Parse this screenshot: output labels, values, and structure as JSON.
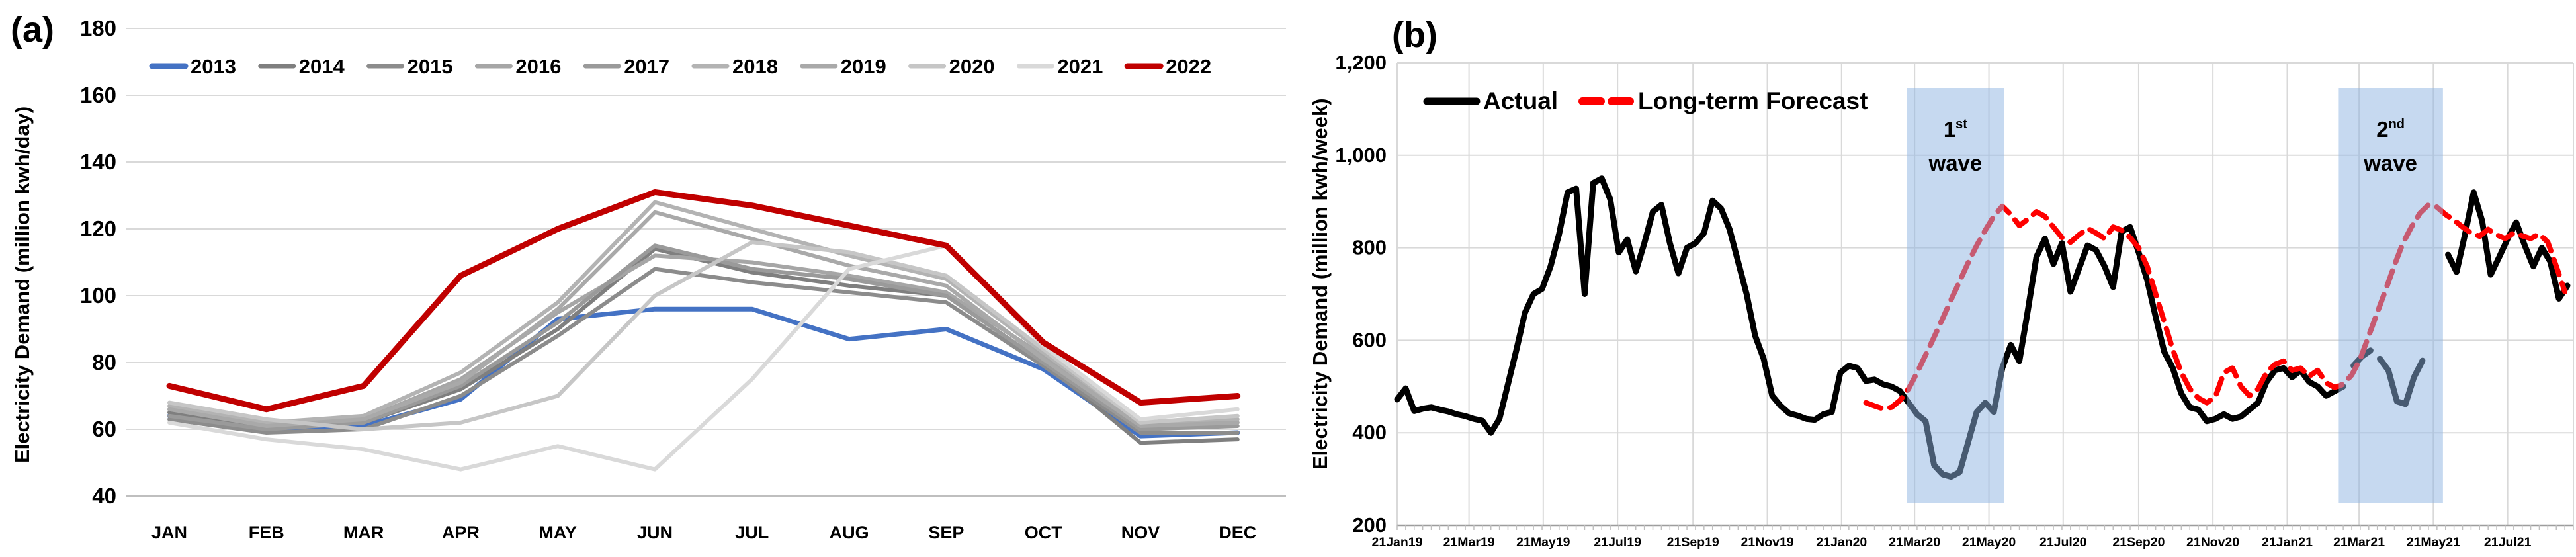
{
  "figure": {
    "panel_a_title": "(a)",
    "panel_b_title": "(b)",
    "panel_a_ylabel": "Electricity Demand (million kwh/day)",
    "panel_b_ylabel": "Electricity Demand (million kwh/week)"
  },
  "colors": {
    "grid": "#D9D9D9",
    "axis": "#BFBFBF",
    "band_fill": "#8DB3E2",
    "text": "#000000",
    "actual": "#000000",
    "forecast": "#FE0000",
    "blue_2013": "#4472C4",
    "red_2022": "#C00000"
  },
  "chart_data": [
    {
      "type": "line",
      "panel": "a",
      "title": "(a)",
      "ylabel": "Electricity Demand (million kwh/day)",
      "xlabel": "",
      "categories": [
        "JAN",
        "FEB",
        "MAR",
        "APR",
        "MAY",
        "JUN",
        "JUL",
        "AUG",
        "SEP",
        "OCT",
        "NOV",
        "DEC"
      ],
      "ylim": [
        40,
        180
      ],
      "yticks": [
        40,
        60,
        80,
        100,
        120,
        140,
        160,
        180
      ],
      "grid": "horizontal",
      "legend_position": "top",
      "series": [
        {
          "name": "2013",
          "color": "#4472C4",
          "width": 7,
          "values": [
            64,
            60,
            61,
            69,
            93,
            96,
            96,
            87,
            90,
            78,
            58,
            59
          ]
        },
        {
          "name": "2014",
          "color": "#7F7F7F",
          "width": 6,
          "values": [
            65,
            61,
            62,
            72,
            90,
            114,
            107,
            103,
            100,
            80,
            56,
            57
          ]
        },
        {
          "name": "2015",
          "color": "#8C8C8C",
          "width": 6,
          "values": [
            63,
            59,
            60,
            70,
            88,
            108,
            104,
            101,
            98,
            79,
            59,
            59
          ]
        },
        {
          "name": "2016",
          "color": "#A6A6A6",
          "width": 6,
          "values": [
            66,
            62,
            63,
            75,
            95,
            112,
            110,
            106,
            101,
            82,
            61,
            62
          ]
        },
        {
          "name": "2017",
          "color": "#9A9A9A",
          "width": 6,
          "values": [
            64,
            60,
            62,
            73,
            92,
            115,
            108,
            105,
            100,
            80,
            60,
            61
          ]
        },
        {
          "name": "2018",
          "color": "#B3B3B3",
          "width": 6,
          "values": [
            67,
            62,
            64,
            77,
            98,
            128,
            120,
            112,
            105,
            83,
            62,
            63
          ]
        },
        {
          "name": "2019",
          "color": "#A9A9A9",
          "width": 6,
          "values": [
            66,
            61,
            63,
            74,
            96,
            125,
            117,
            109,
            103,
            81,
            61,
            62
          ]
        },
        {
          "name": "2020",
          "color": "#C6C6C6",
          "width": 6,
          "values": [
            68,
            63,
            60,
            62,
            70,
            100,
            116,
            113,
            106,
            84,
            62,
            64
          ]
        },
        {
          "name": "2021",
          "color": "#D9D9D9",
          "width": 6,
          "values": [
            62,
            57,
            54,
            48,
            55,
            48,
            75,
            108,
            115,
            85,
            63,
            66
          ]
        },
        {
          "name": "2022",
          "color": "#C00000",
          "width": 9,
          "values": [
            73,
            66,
            73,
            106,
            120,
            131,
            127,
            121,
            115,
            86,
            68,
            70
          ]
        }
      ]
    },
    {
      "type": "line",
      "panel": "b",
      "title": "(b)",
      "ylabel": "Electricity Demand (million kwh/week)",
      "xlabel": "",
      "x_unit": "weeks since 21Jan19",
      "xlim": [
        0,
        138
      ],
      "ylim": [
        200,
        1200
      ],
      "yticks": [
        200,
        400,
        600,
        800,
        1000,
        1200
      ],
      "ytick_labels": [
        "200",
        "400",
        "600",
        "800",
        "1,000",
        "1,200"
      ],
      "xticks": [
        {
          "x": 0,
          "label": "21Jan19"
        },
        {
          "x": 8.43,
          "label": "21Mar19"
        },
        {
          "x": 17.14,
          "label": "21May19"
        },
        {
          "x": 25.86,
          "label": "21Jul19"
        },
        {
          "x": 34.71,
          "label": "21Sep19"
        },
        {
          "x": 43.43,
          "label": "21Nov19"
        },
        {
          "x": 52.14,
          "label": "21Jan20"
        },
        {
          "x": 60.71,
          "label": "21Mar20"
        },
        {
          "x": 69.43,
          "label": "21May20"
        },
        {
          "x": 78.14,
          "label": "21Jul20"
        },
        {
          "x": 87,
          "label": "21Sep20"
        },
        {
          "x": 95.71,
          "label": "21Nov20"
        },
        {
          "x": 104.43,
          "label": "21Jan21"
        },
        {
          "x": 112.86,
          "label": "21Mar21"
        },
        {
          "x": 121.57,
          "label": "21May21"
        },
        {
          "x": 130.29,
          "label": "21Jul21"
        }
      ],
      "minor_tick_step": 1,
      "grid": "both",
      "bands": [
        {
          "from": 59.8,
          "to": 71.2,
          "label_num": "1",
          "label_sup": "st",
          "label_word": "wave"
        },
        {
          "from": 110.4,
          "to": 122.7,
          "label_num": "2",
          "label_sup": "nd",
          "label_word": "wave"
        }
      ],
      "band_fill": "#8DB3E2",
      "band_opacity": 0.5,
      "series": [
        {
          "name": "Actual",
          "color": "#000000",
          "width": 9,
          "dash": null,
          "segments": [
            {
              "start": 0,
              "values": [
                472,
                496,
                447,
                452,
                455,
                450,
                446,
                440,
                436,
                430,
                426,
                400,
                430,
                505,
                580,
                660,
                700,
                711,
                760,
                830,
                920,
                928,
                700,
                940,
                950,
                905,
                790,
                818,
                749,
                810,
                878,
                893,
                810,
                745,
                800,
                810,
                832,
                902,
                885,
                840,
                770,
                700,
                610,
                560,
                480,
                458,
                442,
                437,
                430,
                428,
                440,
                445,
                530,
                545,
                540,
                512,
                515,
                505,
                500,
                490,
                465,
                440,
                425,
                330,
                310,
                305,
                315,
                380,
                445,
                465,
                445,
                540,
                590,
                555,
                665,
                780,
                820,
                765,
                810,
                705,
                755,
                805,
                795,
                760,
                715,
                835,
                845,
                790,
                730,
                650,
                575,
                540,
                485,
                455,
                450,
                425,
                430,
                440,
                430,
                435,
                450,
                465,
                510,
                535,
                540,
                520,
                535,
                510,
                500,
                480,
                490,
                500
              ]
            },
            {
              "start": 112.2,
              "values": [
                545,
                565,
                578
              ]
            },
            {
              "start": 115.3,
              "values": [
                560,
                535,
                468,
                462,
                520,
                556
              ]
            },
            {
              "start": 123.3,
              "values": [
                785,
                748,
                830,
                920,
                858,
                742,
                780,
                820,
                855,
                805,
                760,
                800,
                770,
                690,
                718
              ]
            }
          ]
        },
        {
          "name": "Long-term Forecast",
          "color": "#FE0000",
          "width": 8,
          "dash": "24 14",
          "segments": [
            {
              "start": 55,
              "values": [
                465,
                458,
                452,
                455,
                470,
                495,
                530,
                568,
                607,
                647,
                688,
                728,
                768,
                805,
                838,
                868,
                890,
                872,
                848,
                862,
                878,
                868,
                845,
                822,
                812,
                828,
                842,
                832,
                820,
                845,
                838,
                822,
                800,
                760,
                700,
                640,
                580,
                530,
                495,
                475,
                465,
                478,
                530,
                540,
                500,
                480,
                495,
                530,
                548,
                555,
                535,
                540,
                522,
                535,
                508,
                498,
                505,
                525,
                560,
                610,
                660,
                710,
                762,
                810,
                845,
                875,
                893,
                888,
                872,
                860,
                845,
                832,
                825,
                840,
                828,
                820,
                832,
                826,
                820,
                830,
                812,
                760,
                705
              ]
            }
          ]
        }
      ]
    }
  ]
}
